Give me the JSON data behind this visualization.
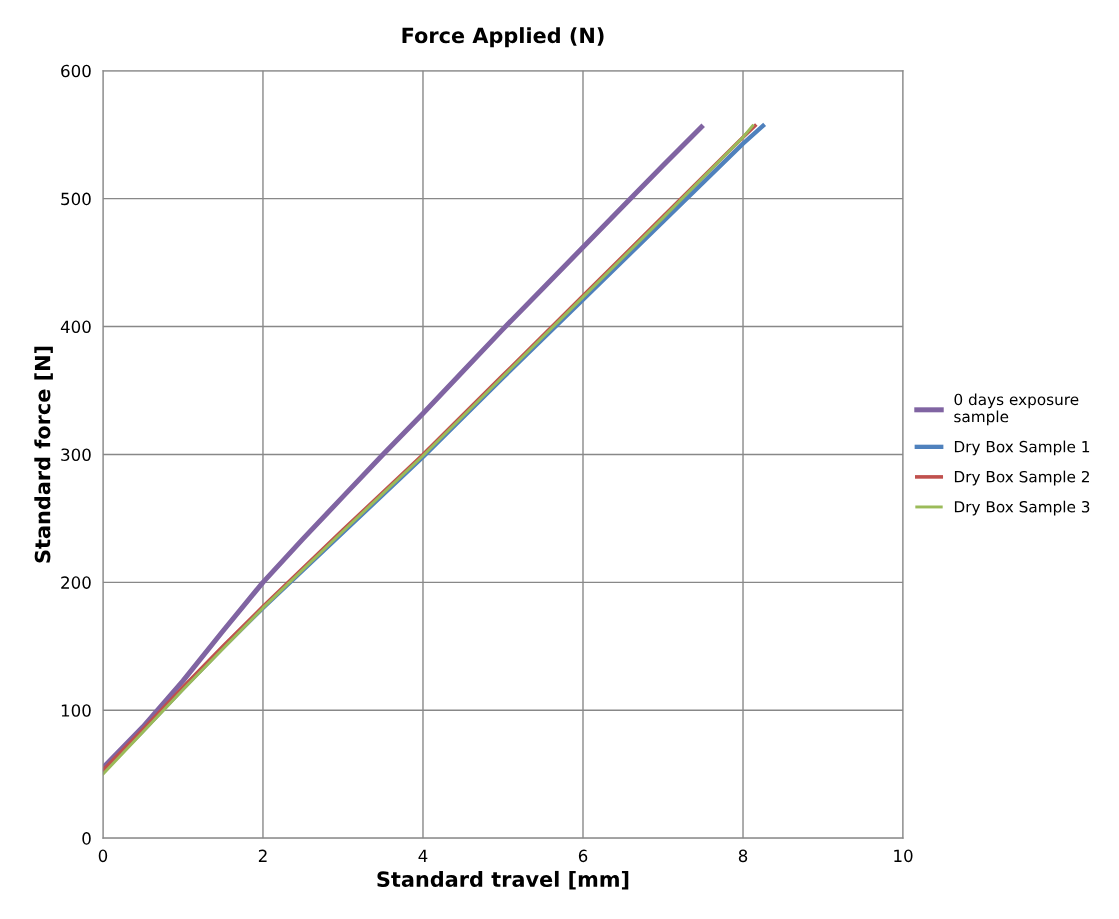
{
  "chart_data": {
    "type": "line",
    "title": "Force Applied (N)",
    "xlabel": "Standard travel [mm]",
    "ylabel": "Standard force [N]",
    "xlim": [
      0,
      10
    ],
    "xticks": [
      0,
      2,
      4,
      6,
      8,
      10
    ],
    "ylim": [
      0,
      600
    ],
    "yticks": [
      0,
      100,
      200,
      300,
      400,
      500,
      600
    ],
    "grid": true,
    "legend": "right",
    "marker": "none",
    "line_style": "solid",
    "series": [
      {
        "name": "0 days exposure sample",
        "color": "#8064a2",
        "x": [
          0,
          0.5,
          1,
          1.5,
          2,
          2.5,
          3,
          3.5,
          4,
          4.5,
          5,
          5.5,
          6,
          6.5,
          7,
          7.48
        ],
        "values": [
          55,
          87,
          123,
          162,
          200,
          234,
          267,
          300,
          332,
          365,
          398,
          430,
          462,
          494,
          526,
          556
        ]
      },
      {
        "name": "Dry Box Sample 1",
        "color": "#4f81bd",
        "x": [
          0,
          0.5,
          1,
          1.5,
          2,
          3,
          4,
          5,
          6,
          7,
          8,
          8.25
        ],
        "values": [
          52,
          84,
          117,
          149,
          180,
          239,
          298,
          360,
          421,
          482,
          543,
          557
        ]
      },
      {
        "name": "Dry Box Sample 2",
        "color": "#c0504d",
        "x": [
          0,
          0.5,
          1,
          1.5,
          2,
          3,
          4,
          5,
          6,
          7,
          8,
          8.15
        ],
        "values": [
          53,
          85,
          118,
          150,
          181,
          241,
          300,
          362,
          424,
          486,
          548,
          557
        ]
      },
      {
        "name": "Dry Box Sample 3",
        "color": "#9bbb59",
        "x": [
          0,
          0.5,
          1,
          1.5,
          2,
          3,
          4,
          5,
          6,
          7,
          8,
          8.12
        ],
        "values": [
          50,
          83,
          116,
          148,
          180,
          240,
          299,
          361,
          423,
          485,
          548,
          557
        ]
      }
    ]
  }
}
